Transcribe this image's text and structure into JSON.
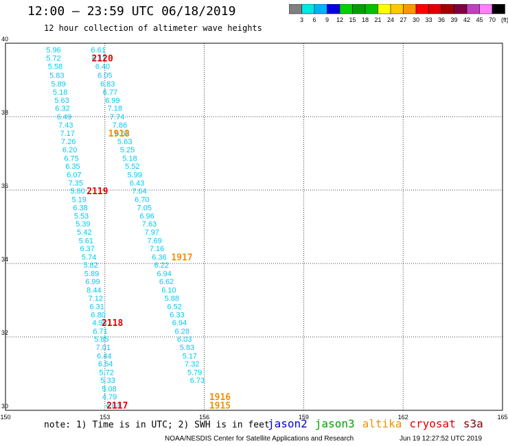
{
  "header": {
    "title": "12:00 – 23:59 UTC 06/18/2019",
    "subtitle": "12 hour collection of altimeter wave heights"
  },
  "colorbar": {
    "labels": [
      "3",
      "6",
      "9",
      "12",
      "15",
      "18",
      "21",
      "24",
      "27",
      "30",
      "33",
      "36",
      "39",
      "42",
      "45",
      "70",
      "(ft)"
    ],
    "colors": [
      "#808080",
      "#00e5e5",
      "#00b2ff",
      "#0000e0",
      "#00d000",
      "#00a000",
      "#00c000",
      "#ffff00",
      "#ffc800",
      "#ff9600",
      "#ff0000",
      "#e00000",
      "#a00000",
      "#800040",
      "#c040c0",
      "#ff80ff",
      "#000000"
    ]
  },
  "chart_data": {
    "type": "scatter",
    "xlim": [
      150,
      165
    ],
    "ylim": [
      30,
      40
    ],
    "xticks": [
      "150",
      "153",
      "156",
      "159",
      "162",
      "165"
    ],
    "yticks": [
      "40",
      "38",
      "36",
      "34",
      "32",
      "30"
    ],
    "grid": true,
    "series": [
      {
        "name": "s3a",
        "color": "#00c8f0",
        "points": [
          [
            151.45,
            39.82,
            "5.96"
          ],
          [
            151.45,
            39.6,
            "5.72"
          ],
          [
            151.5,
            39.37,
            "5.58"
          ],
          [
            151.55,
            39.13,
            "5.83"
          ],
          [
            151.6,
            38.9,
            "5.89"
          ],
          [
            151.65,
            38.67,
            "5.18"
          ],
          [
            151.7,
            38.45,
            "5.63"
          ],
          [
            151.72,
            38.23,
            "6.32"
          ],
          [
            151.77,
            38.0,
            "6.49"
          ],
          [
            151.82,
            37.78,
            "7.43"
          ],
          [
            151.87,
            37.55,
            "7.17"
          ],
          [
            151.9,
            37.33,
            "7.26"
          ],
          [
            151.94,
            37.1,
            "6.20"
          ],
          [
            151.99,
            36.87,
            "6.75"
          ],
          [
            152.03,
            36.65,
            "6.35"
          ],
          [
            152.07,
            36.42,
            "6.07"
          ],
          [
            152.12,
            36.2,
            "7.35"
          ],
          [
            152.18,
            35.98,
            "5.80"
          ],
          [
            152.22,
            35.75,
            "5.19"
          ],
          [
            152.26,
            35.52,
            "6.38"
          ],
          [
            152.29,
            35.3,
            "5.53"
          ],
          [
            152.34,
            35.08,
            "5.39"
          ],
          [
            152.38,
            34.86,
            "5.42"
          ],
          [
            152.43,
            34.63,
            "5.61"
          ],
          [
            152.47,
            34.41,
            "6.37"
          ],
          [
            152.52,
            34.18,
            "5.74"
          ],
          [
            152.57,
            33.96,
            "5.82"
          ],
          [
            152.6,
            33.73,
            "5.89"
          ],
          [
            152.63,
            33.51,
            "6.99"
          ],
          [
            152.67,
            33.28,
            "8.44"
          ],
          [
            152.72,
            33.06,
            "7.12"
          ],
          [
            152.76,
            32.83,
            "6.31"
          ],
          [
            152.8,
            32.61,
            "6.80"
          ],
          [
            152.84,
            32.39,
            "4.98"
          ],
          [
            152.86,
            32.16,
            "6.71"
          ],
          [
            152.9,
            31.94,
            "5.85"
          ],
          [
            152.95,
            31.72,
            "7.01"
          ],
          [
            152.98,
            31.49,
            "6.44"
          ],
          [
            153.02,
            31.27,
            "6.54"
          ],
          [
            153.05,
            31.04,
            "5.72"
          ],
          [
            153.09,
            30.82,
            "5.33"
          ],
          [
            153.13,
            30.59,
            "5.08"
          ],
          [
            153.14,
            30.37,
            "4.79"
          ],
          [
            153.24,
            30.14,
            "4.83"
          ]
        ]
      },
      {
        "name": "s3a",
        "color": "#00c8f0",
        "points": [
          [
            152.8,
            39.82,
            "6.61"
          ],
          [
            152.82,
            39.6,
            "6.11"
          ],
          [
            152.93,
            39.37,
            "6.40"
          ],
          [
            153.0,
            39.13,
            "6.05"
          ],
          [
            153.08,
            38.9,
            "6.83"
          ],
          [
            153.16,
            38.67,
            "6.77"
          ],
          [
            153.23,
            38.45,
            "6.99"
          ],
          [
            153.3,
            38.23,
            "7.18"
          ],
          [
            153.37,
            38.0,
            "7.74"
          ],
          [
            153.45,
            37.78,
            "7.86"
          ],
          [
            153.52,
            37.55,
            "6.62"
          ],
          [
            153.6,
            37.33,
            "5.63"
          ],
          [
            153.68,
            37.1,
            "5.25"
          ],
          [
            153.75,
            36.87,
            "5.18"
          ],
          [
            153.83,
            36.65,
            "5.52"
          ],
          [
            153.9,
            36.42,
            "5.99"
          ],
          [
            153.97,
            36.2,
            "6.43"
          ],
          [
            154.04,
            35.98,
            "7.04"
          ],
          [
            154.12,
            35.75,
            "6.70"
          ],
          [
            154.19,
            35.52,
            "7.05"
          ],
          [
            154.27,
            35.3,
            "6.96"
          ],
          [
            154.34,
            35.08,
            "7.63"
          ],
          [
            154.42,
            34.86,
            "7.97"
          ],
          [
            154.5,
            34.63,
            "7.69"
          ],
          [
            154.57,
            34.41,
            "7.16"
          ],
          [
            154.64,
            34.18,
            "6.36"
          ],
          [
            154.71,
            33.96,
            "6.22"
          ],
          [
            154.79,
            33.73,
            "6.94"
          ],
          [
            154.86,
            33.51,
            "6.62"
          ],
          [
            154.93,
            33.28,
            "6.10"
          ],
          [
            155.02,
            33.06,
            "5.88"
          ],
          [
            155.1,
            32.83,
            "6.52"
          ],
          [
            155.18,
            32.61,
            "6.33"
          ],
          [
            155.25,
            32.39,
            "6.94"
          ],
          [
            155.33,
            32.16,
            "6.28"
          ],
          [
            155.4,
            31.94,
            "6.03"
          ],
          [
            155.48,
            31.72,
            "5.83"
          ],
          [
            155.56,
            31.49,
            "5.17"
          ],
          [
            155.63,
            31.27,
            "7.32"
          ],
          [
            155.71,
            31.04,
            "5.79"
          ],
          [
            155.79,
            30.82,
            "6.73"
          ]
        ]
      }
    ],
    "time_labels": [
      {
        "x": 152.6,
        "y": 39.6,
        "text": "2120",
        "color": "#e00000"
      },
      {
        "x": 153.1,
        "y": 37.55,
        "text": "1918",
        "color": "#f09000"
      },
      {
        "x": 152.45,
        "y": 35.98,
        "text": "2119",
        "color": "#e00000"
      },
      {
        "x": 155.0,
        "y": 34.18,
        "text": "1917",
        "color": "#f09000"
      },
      {
        "x": 152.9,
        "y": 32.39,
        "text": "2118",
        "color": "#e00000"
      },
      {
        "x": 156.15,
        "y": 30.37,
        "text": "1916",
        "color": "#f09000"
      },
      {
        "x": 156.15,
        "y": 30.14,
        "text": "1915",
        "color": "#f09000"
      },
      {
        "x": 153.05,
        "y": 30.14,
        "text": "2117",
        "color": "#e00000"
      }
    ]
  },
  "notes": {
    "text": "note: 1) Time is in UTC; 2) SWH is in feet"
  },
  "legend": {
    "items": [
      {
        "label": "jason2",
        "color": "#0000d0"
      },
      {
        "label": "jason3",
        "color": "#00a000"
      },
      {
        "label": "altika",
        "color": "#f09000"
      },
      {
        "label": "cryosat",
        "color": "#e00000"
      },
      {
        "label": "s3a",
        "color": "#800000"
      }
    ]
  },
  "footer": {
    "credit": "NOAA/NESDIS Center for Satellite Applications and Research",
    "timestamp": "Jun 19 12:27:52 UTC 2019"
  }
}
